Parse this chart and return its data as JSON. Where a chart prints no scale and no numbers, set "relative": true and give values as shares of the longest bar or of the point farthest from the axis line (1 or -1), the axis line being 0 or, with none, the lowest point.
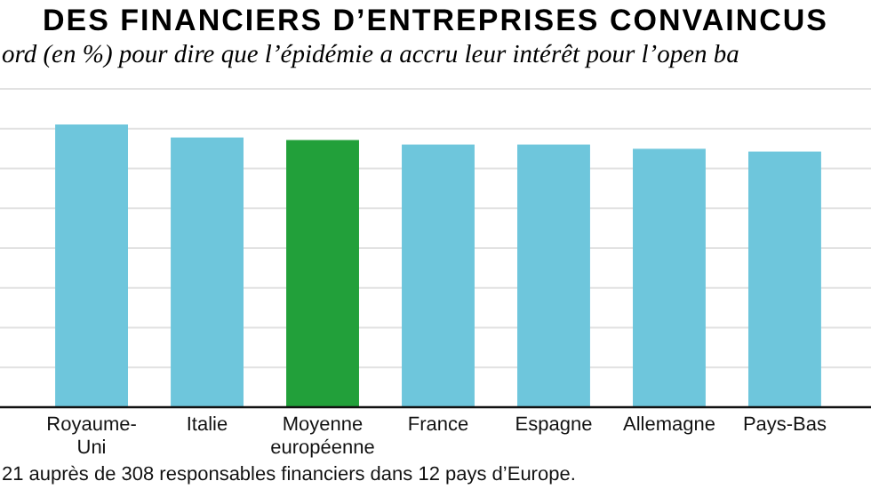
{
  "chart_data": {
    "type": "bar",
    "title": "DES FINANCIERS D’ENTREPRISES CONVAINCUS",
    "subtitle": "ord (en %) pour dire que l’épidémie a accru leur intérêt pour l’open ba",
    "categories": [
      "Royaume-Uni",
      "Italie",
      "Moyenne européenne",
      "France",
      "Espagne",
      "Allemagne",
      "Pays-Bas"
    ],
    "values": [
      1,
      0.954,
      0.945,
      0.929,
      0.929,
      0.914,
      0.904
    ],
    "colors": [
      "#6ec6dc",
      "#6ec6dc",
      "#22a03a",
      "#6ec6dc",
      "#6ec6dc",
      "#6ec6dc",
      "#6ec6dc"
    ],
    "relative": true,
    "grid": "y",
    "annotations": [
      "21 auprès de 308 responsables financiers dans 12 pays d’Europe."
    ]
  }
}
